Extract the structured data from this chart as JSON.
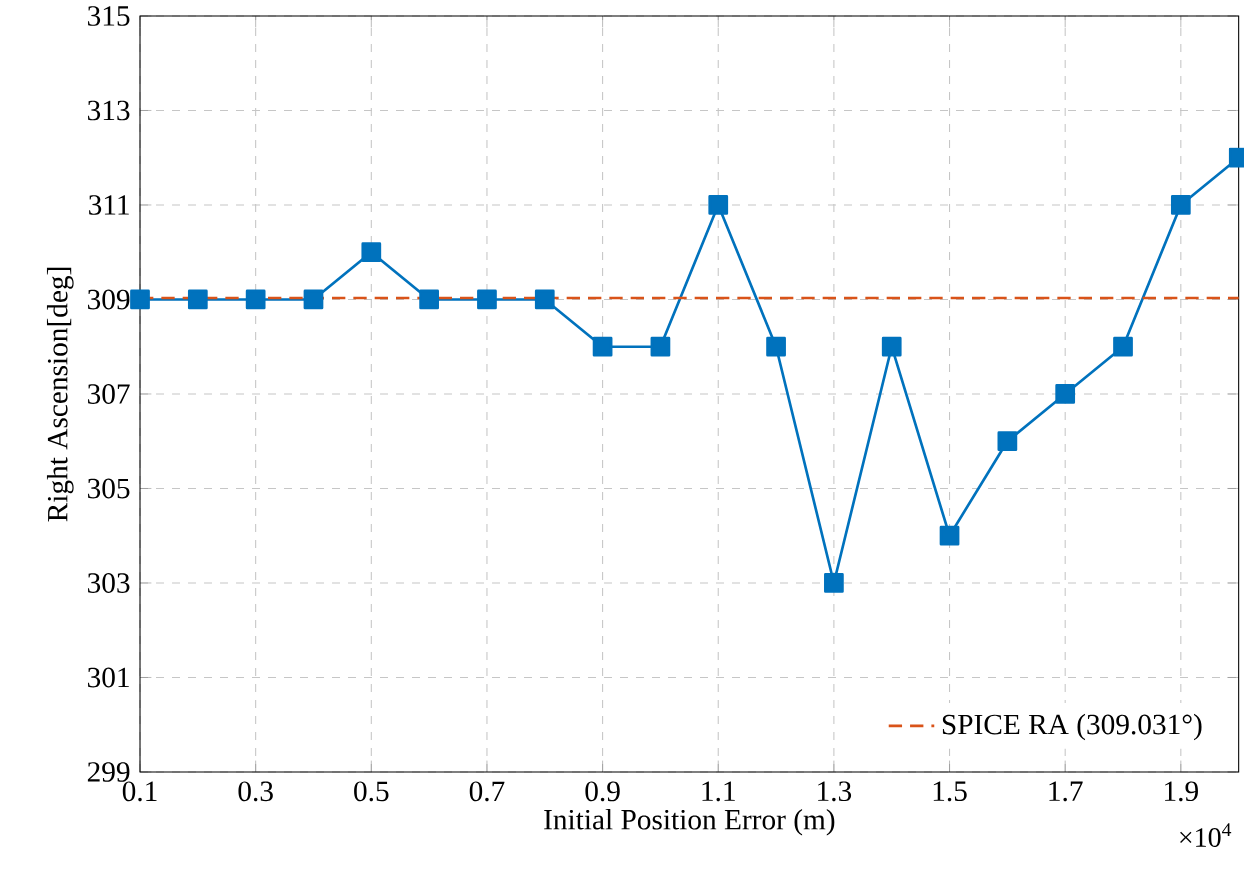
{
  "chart_data": {
    "type": "line",
    "xlabel": "Initial Position Error (m)",
    "ylabel": "Right Ascension[deg]",
    "x": [
      0.1,
      0.2,
      0.3,
      0.4,
      0.5,
      0.6,
      0.7,
      0.8,
      0.9,
      1.0,
      1.1,
      1.2,
      1.3,
      1.4,
      1.5,
      1.6,
      1.7,
      1.8,
      1.9,
      2.0
    ],
    "series": [
      {
        "color": "#0072bd",
        "values": [
          309,
          309,
          309,
          309,
          310,
          309,
          309,
          309,
          308,
          308,
          311,
          308,
          303,
          308,
          304,
          306,
          307,
          308,
          311,
          312
        ]
      }
    ],
    "xlim": [
      0.1,
      2.0
    ],
    "xticks": [
      0.1,
      0.3,
      0.5,
      0.7,
      0.9,
      1.1,
      1.3,
      1.5,
      1.7,
      1.9
    ],
    "ylim": [
      299,
      315
    ],
    "yticks": [
      299,
      301,
      303,
      305,
      307,
      309,
      311,
      313,
      315
    ],
    "grid": true,
    "legend": "bottom right",
    "marker": "square",
    "line_style": "solid",
    "ref_lines": [
      {
        "axis": "y",
        "value": 309.031,
        "label": "SPICE RA (309.031°)",
        "color": "#d95319",
        "line_style": "dashed"
      }
    ],
    "annotations": [
      "×10$^{4}$"
    ]
  }
}
